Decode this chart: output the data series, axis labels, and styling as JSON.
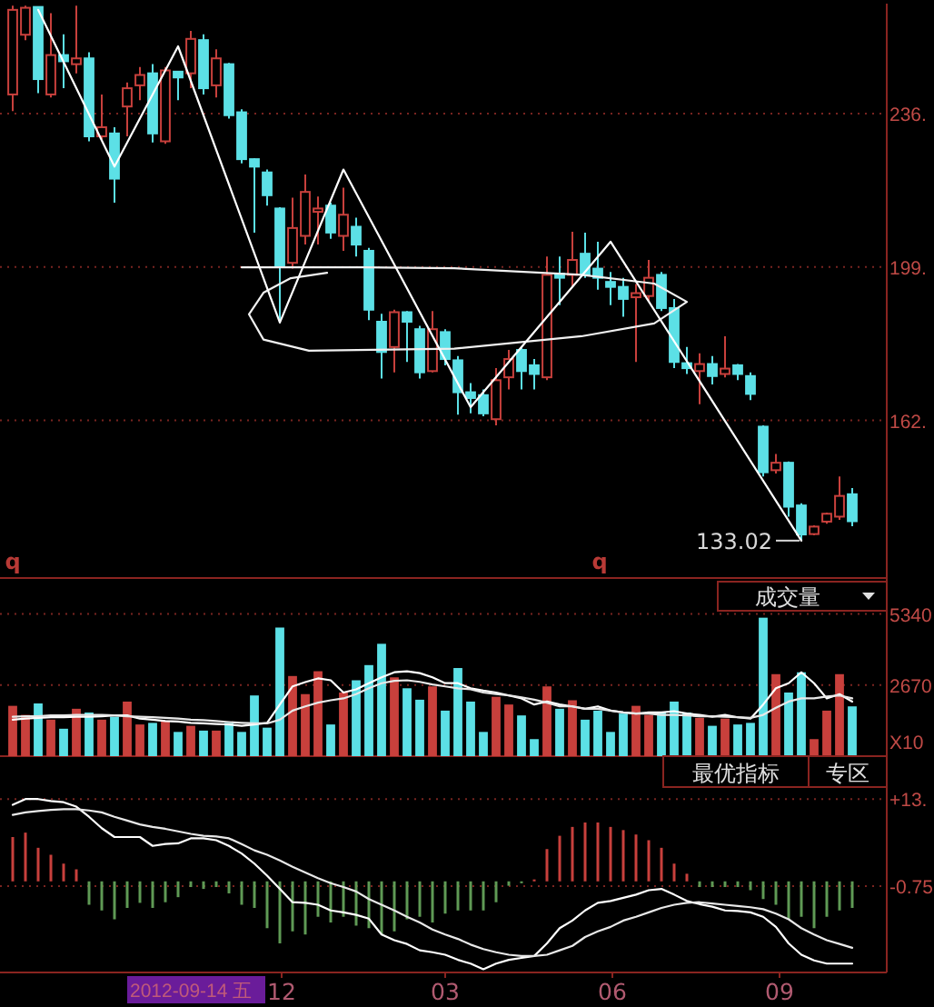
{
  "chart_data": [
    {
      "type": "candlestick",
      "xlim": [
        "2012-06-29",
        "2013-10-30"
      ],
      "ylim": [
        124,
        262.5
      ],
      "yticks": [
        {
          "value": 236,
          "label": "236."
        },
        {
          "value": 199,
          "label": "199."
        },
        {
          "value": 162,
          "label": "162."
        }
      ],
      "grid": "y",
      "tick_labels": "y",
      "x": [
        "2012-07-06",
        "2012-07-13",
        "2012-07-20",
        "2012-07-27",
        "2012-08-03",
        "2012-08-10",
        "2012-08-17",
        "2012-08-24",
        "2012-08-31",
        "2012-09-07",
        "2012-09-14",
        "2012-09-21",
        "2012-09-28",
        "2012-10-05",
        "2012-10-12",
        "2012-10-19",
        "2012-10-26",
        "2012-11-02",
        "2012-11-09",
        "2012-11-16",
        "2012-11-23",
        "2012-11-30",
        "2012-12-07",
        "2012-12-14",
        "2012-12-21",
        "2012-12-28",
        "2013-01-04",
        "2013-01-11",
        "2013-01-18",
        "2013-01-25",
        "2013-02-01",
        "2013-02-08",
        "2013-02-15",
        "2013-02-22",
        "2013-03-01",
        "2013-03-08",
        "2013-03-15",
        "2013-03-22",
        "2013-03-29",
        "2013-04-05",
        "2013-04-12",
        "2013-04-19",
        "2013-04-26",
        "2013-05-03",
        "2013-05-10",
        "2013-05-17",
        "2013-05-24",
        "2013-05-31",
        "2013-06-07",
        "2013-06-14",
        "2013-06-21",
        "2013-06-28",
        "2013-07-05",
        "2013-07-12",
        "2013-07-19",
        "2013-07-26",
        "2013-08-02",
        "2013-08-09",
        "2013-08-16",
        "2013-08-23",
        "2013-08-30",
        "2013-09-06",
        "2013-09-13",
        "2013-09-20",
        "2013-09-27",
        "2013-10-04",
        "2013-10-11"
      ],
      "ohlc": [
        [
          240.6,
          262.0,
          236.6,
          261.0
        ],
        [
          255.0,
          262.0,
          253.7,
          261.5
        ],
        [
          261.7,
          261.7,
          240.9,
          244.3
        ],
        [
          240.6,
          260.2,
          239.9,
          250.1
        ],
        [
          250.1,
          255.1,
          242.1,
          248.6
        ],
        [
          247.9,
          262.0,
          245.7,
          249.3
        ],
        [
          249.3,
          250.8,
          229.3,
          230.5
        ],
        [
          230.5,
          240.6,
          229.8,
          232.7
        ],
        [
          231.2,
          232.7,
          214.5,
          220.3
        ],
        [
          237.7,
          243.5,
          230.5,
          242.1
        ],
        [
          242.8,
          247.2,
          239.2,
          245.3
        ],
        [
          245.7,
          247.9,
          229.0,
          231.2
        ],
        [
          229.3,
          247.2,
          228.7,
          246.4
        ],
        [
          246.1,
          246.3,
          239.2,
          244.7
        ],
        [
          245.7,
          255.9,
          242.1,
          254.0
        ],
        [
          253.7,
          255.1,
          240.6,
          242.1
        ],
        [
          242.8,
          251.5,
          239.9,
          249.3
        ],
        [
          247.9,
          248.2,
          234.8,
          235.6
        ],
        [
          236.3,
          237.0,
          224.0,
          225.0
        ],
        [
          225.0,
          225.2,
          207.3,
          223.2
        ],
        [
          221.8,
          222.5,
          213.8,
          216.3
        ],
        [
          213.1,
          213.4,
          185.5,
          199.3
        ],
        [
          200.0,
          215.7,
          198.6,
          208.4
        ],
        [
          206.5,
          221.3,
          204.4,
          217.1
        ],
        [
          212.3,
          216.0,
          204.4,
          213.1
        ],
        [
          213.8,
          214.5,
          205.8,
          207.3
        ],
        [
          206.5,
          218.1,
          202.9,
          211.6
        ],
        [
          208.7,
          210.9,
          201.5,
          204.4
        ],
        [
          202.9,
          203.6,
          186.2,
          188.7
        ],
        [
          185.8,
          187.7,
          172.1,
          178.5
        ],
        [
          179.7,
          188.7,
          173.6,
          188.1
        ],
        [
          188.1,
          188.4,
          176.1,
          185.8
        ],
        [
          184.0,
          184.8,
          172.1,
          173.6
        ],
        [
          173.9,
          188.4,
          173.6,
          184.0
        ],
        [
          183.3,
          184.0,
          175.3,
          176.8
        ],
        [
          176.5,
          177.5,
          163.4,
          168.8
        ],
        [
          168.8,
          171.0,
          163.7,
          167.4
        ],
        [
          168.1,
          169.5,
          163.0,
          163.7
        ],
        [
          162.3,
          174.6,
          160.8,
          171.7
        ],
        [
          172.4,
          179.0,
          169.5,
          176.8
        ],
        [
          179.0,
          179.7,
          169.5,
          173.9
        ],
        [
          175.3,
          176.8,
          169.5,
          173.2
        ],
        [
          172.4,
          201.5,
          171.7,
          197.1
        ],
        [
          197.4,
          201.5,
          189.8,
          196.4
        ],
        [
          197.1,
          207.5,
          194.2,
          200.7
        ],
        [
          202.2,
          207.3,
          196.4,
          197.1
        ],
        [
          198.6,
          205.1,
          193.5,
          196.4
        ],
        [
          195.4,
          197.8,
          189.8,
          194.2
        ],
        [
          194.2,
          196.4,
          187.0,
          191.3
        ],
        [
          191.7,
          194.9,
          176.1,
          192.7
        ],
        [
          192.0,
          200.7,
          190.6,
          196.4
        ],
        [
          197.1,
          197.8,
          188.4,
          189.1
        ],
        [
          189.1,
          191.3,
          174.6,
          176.1
        ],
        [
          175.8,
          179.7,
          173.2,
          174.6
        ],
        [
          173.9,
          178.2,
          165.9,
          175.6
        ],
        [
          175.6,
          177.5,
          170.7,
          172.7
        ],
        [
          173.2,
          182.3,
          172.4,
          174.5
        ],
        [
          175.3,
          175.6,
          171.7,
          173.2
        ],
        [
          172.7,
          173.6,
          166.9,
          168.4
        ],
        [
          160.5,
          160.8,
          148.5,
          149.5
        ],
        [
          150.0,
          153.9,
          149.2,
          151.8
        ],
        [
          151.8,
          152.1,
          138.8,
          141.2
        ],
        [
          141.5,
          142.0,
          133.02,
          134.5
        ],
        [
          134.6,
          136.7,
          134.3,
          136.4
        ],
        [
          137.6,
          139.8,
          137.1,
          139.5
        ],
        [
          138.8,
          148.5,
          138.0,
          143.8
        ],
        [
          144.2,
          145.7,
          136.5,
          137.7
        ]
      ],
      "colors": [
        "#c8403c",
        "#c8403c",
        "#5ce0e6",
        "#c8403c",
        "#5ce0e6",
        "#c8403c",
        "#5ce0e6",
        "#c8403c",
        "#5ce0e6",
        "#c8403c",
        "#c8403c",
        "#5ce0e6",
        "#c8403c",
        "#5ce0e6",
        "#c8403c",
        "#5ce0e6",
        "#c8403c",
        "#5ce0e6",
        "#5ce0e6",
        "#5ce0e6",
        "#5ce0e6",
        "#5ce0e6",
        "#c8403c",
        "#c8403c",
        "#c8403c",
        "#5ce0e6",
        "#c8403c",
        "#5ce0e6",
        "#5ce0e6",
        "#5ce0e6",
        "#c8403c",
        "#5ce0e6",
        "#5ce0e6",
        "#c8403c",
        "#5ce0e6",
        "#5ce0e6",
        "#5ce0e6",
        "#5ce0e6",
        "#c8403c",
        "#c8403c",
        "#5ce0e6",
        "#5ce0e6",
        "#c8403c",
        "#5ce0e6",
        "#c8403c",
        "#5ce0e6",
        "#5ce0e6",
        "#5ce0e6",
        "#5ce0e6",
        "#c8403c",
        "#c8403c",
        "#5ce0e6",
        "#5ce0e6",
        "#5ce0e6",
        "#c8403c",
        "#5ce0e6",
        "#c8403c",
        "#5ce0e6",
        "#5ce0e6",
        "#5ce0e6",
        "#c8403c",
        "#5ce0e6",
        "#5ce0e6",
        "#c8403c",
        "#c8403c",
        "#c8403c",
        "#5ce0e6"
      ],
      "series": [
        {
          "type": "line",
          "color": "#f0f0f0",
          "x": [
            "2012-11-09",
            "2013-01-15",
            "2013-03-06",
            "2013-05-15",
            "2013-06-24",
            "2013-07-12",
            "2013-06-24",
            "2013-05-15",
            "2013-03-06",
            "2012-12-16",
            "2012-11-21",
            "2012-11-13",
            "2012-11-21",
            "2012-12-06",
            "2012-12-26"
          ],
          "values": [
            198.9,
            198.9,
            198.7,
            197.1,
            195.0,
            190.6,
            185.4,
            182.3,
            179.3,
            178.8,
            181.5,
            187.6,
            192.8,
            196.3,
            197.6
          ]
        },
        {
          "type": "line",
          "color": "#ffffff",
          "x": [
            "2012-07-20",
            "2012-08-31",
            "2012-10-05",
            "2012-11-30",
            "2013-01-04",
            "2013-03-15",
            "2013-05-31",
            "2013-09-13"
          ],
          "values": [
            261.0,
            223.2,
            252.2,
            185.6,
            222.5,
            165.2,
            205.1,
            133.02
          ]
        }
      ],
      "annotations": [
        {
          "text": "133.02",
          "x": "2013-09-13",
          "y": 133.02
        },
        "q",
        "q"
      ]
    },
    {
      "type": "bar",
      "xlim": [
        "2012-06-29",
        "2013-10-30"
      ],
      "ylim": [
        0,
        6690
      ],
      "yticks": [
        5340,
        2670
      ],
      "ylabel": "X10",
      "grid": "y",
      "tick_labels": "y",
      "x": [
        "2012-07-06",
        "2012-07-13",
        "2012-07-20",
        "2012-07-27",
        "2012-08-03",
        "2012-08-10",
        "2012-08-17",
        "2012-08-24",
        "2012-08-31",
        "2012-09-07",
        "2012-09-14",
        "2012-09-21",
        "2012-09-28",
        "2012-10-05",
        "2012-10-12",
        "2012-10-19",
        "2012-10-26",
        "2012-11-02",
        "2012-11-09",
        "2012-11-16",
        "2012-11-23",
        "2012-11-30",
        "2012-12-07",
        "2012-12-14",
        "2012-12-21",
        "2012-12-28",
        "2013-01-04",
        "2013-01-11",
        "2013-01-18",
        "2013-01-25",
        "2013-02-01",
        "2013-02-08",
        "2013-02-15",
        "2013-02-22",
        "2013-03-01",
        "2013-03-08",
        "2013-03-15",
        "2013-03-22",
        "2013-03-29",
        "2013-04-05",
        "2013-04-12",
        "2013-04-19",
        "2013-04-26",
        "2013-05-03",
        "2013-05-10",
        "2013-05-17",
        "2013-05-24",
        "2013-05-31",
        "2013-06-07",
        "2013-06-14",
        "2013-06-21",
        "2013-06-28",
        "2013-07-05",
        "2013-07-12",
        "2013-07-19",
        "2013-07-26",
        "2013-08-02",
        "2013-08-09",
        "2013-08-16",
        "2013-08-23",
        "2013-08-30",
        "2013-09-06",
        "2013-09-13",
        "2013-09-20",
        "2013-09-27",
        "2013-10-04",
        "2013-10-11"
      ],
      "series": [
        {
          "type": "bar",
          "values": [
            1890,
            1550,
            1980,
            1370,
            1030,
            1780,
            1640,
            1370,
            1480,
            2050,
            1190,
            1250,
            1320,
            910,
            1140,
            960,
            960,
            1250,
            910,
            2280,
            1070,
            4830,
            3010,
            2330,
            3190,
            1190,
            2390,
            2850,
            3420,
            4220,
            2960,
            2550,
            2120,
            2620,
            1710,
            3310,
            2050,
            910,
            2230,
            1940,
            1530,
            640,
            2620,
            1780,
            2100,
            1370,
            1710,
            910,
            1600,
            1890,
            1550,
            1640,
            2050,
            1640,
            1440,
            1140,
            1410,
            1190,
            1250,
            5200,
            3080,
            2390,
            3150,
            640,
            1710,
            3080,
            1870
          ],
          "colors": [
            "#c8403c",
            "#c8403c",
            "#5ce0e6",
            "#c8403c",
            "#5ce0e6",
            "#c8403c",
            "#5ce0e6",
            "#c8403c",
            "#5ce0e6",
            "#c8403c",
            "#c8403c",
            "#5ce0e6",
            "#c8403c",
            "#5ce0e6",
            "#c8403c",
            "#5ce0e6",
            "#c8403c",
            "#5ce0e6",
            "#5ce0e6",
            "#5ce0e6",
            "#5ce0e6",
            "#5ce0e6",
            "#c8403c",
            "#c8403c",
            "#c8403c",
            "#5ce0e6",
            "#c8403c",
            "#5ce0e6",
            "#5ce0e6",
            "#5ce0e6",
            "#c8403c",
            "#5ce0e6",
            "#5ce0e6",
            "#c8403c",
            "#5ce0e6",
            "#5ce0e6",
            "#5ce0e6",
            "#5ce0e6",
            "#c8403c",
            "#c8403c",
            "#5ce0e6",
            "#5ce0e6",
            "#c8403c",
            "#5ce0e6",
            "#c8403c",
            "#5ce0e6",
            "#5ce0e6",
            "#5ce0e6",
            "#5ce0e6",
            "#c8403c",
            "#c8403c",
            "#5ce0e6",
            "#5ce0e6",
            "#5ce0e6",
            "#c8403c",
            "#5ce0e6",
            "#c8403c",
            "#5ce0e6",
            "#5ce0e6",
            "#5ce0e6",
            "#c8403c",
            "#5ce0e6",
            "#5ce0e6",
            "#c8403c",
            "#c8403c",
            "#c8403c",
            "#5ce0e6"
          ]
        },
        {
          "type": "line",
          "color": "#ffffff",
          "values": [
            1370,
            1410,
            1440,
            1460,
            1460,
            1480,
            1480,
            1500,
            1530,
            1530,
            1410,
            1370,
            1320,
            1300,
            1250,
            1230,
            1210,
            1190,
            1140,
            1190,
            1250,
            1940,
            2620,
            2780,
            2920,
            2850,
            2390,
            2510,
            2740,
            2960,
            3150,
            3190,
            3120,
            2960,
            2740,
            2740,
            2550,
            2460,
            2390,
            2280,
            2170,
            1940,
            2050,
            1940,
            1870,
            1780,
            1870,
            1710,
            1640,
            1600,
            1640,
            1640,
            1690,
            1600,
            1550,
            1480,
            1550,
            1460,
            1410,
            1940,
            2550,
            2740,
            3150,
            2740,
            2170,
            2330,
            2050
          ]
        },
        {
          "type": "line",
          "color": "#e8e8e8",
          "values": [
            1480,
            1500,
            1500,
            1530,
            1530,
            1550,
            1550,
            1550,
            1530,
            1500,
            1480,
            1460,
            1440,
            1410,
            1370,
            1350,
            1320,
            1280,
            1250,
            1230,
            1230,
            1370,
            1710,
            1870,
            2010,
            2100,
            2170,
            2330,
            2550,
            2740,
            2830,
            2850,
            2790,
            2690,
            2620,
            2550,
            2510,
            2390,
            2330,
            2280,
            2210,
            2120,
            2010,
            1870,
            1870,
            1780,
            1780,
            1710,
            1640,
            1600,
            1600,
            1550,
            1550,
            1530,
            1500,
            1500,
            1480,
            1460,
            1440,
            1550,
            1820,
            2050,
            2170,
            2170,
            2240,
            2280,
            2170
          ]
        }
      ],
      "annotations": [
        "成交量"
      ]
    },
    {
      "type": "bar",
      "xlim": [
        "2012-06-29",
        "2013-10-30"
      ],
      "ylim": [
        -14.4,
        14.9
      ],
      "yticks": [
        {
          "value": 13,
          "label": "+13."
        },
        -0.75
      ],
      "grid": "y",
      "xticks": [
        {
          "value": "2012-12-01",
          "label": "12"
        },
        {
          "value": "2013-03-01",
          "label": "03"
        },
        {
          "value": "2013-06-01",
          "label": "06"
        },
        {
          "value": "2013-09-01",
          "label": "09"
        }
      ],
      "x": [
        "2012-07-06",
        "2012-07-13",
        "2012-07-20",
        "2012-07-27",
        "2012-08-03",
        "2012-08-10",
        "2012-08-17",
        "2012-08-24",
        "2012-08-31",
        "2012-09-07",
        "2012-09-14",
        "2012-09-21",
        "2012-09-28",
        "2012-10-05",
        "2012-10-12",
        "2012-10-19",
        "2012-10-26",
        "2012-11-02",
        "2012-11-09",
        "2012-11-16",
        "2012-11-23",
        "2012-11-30",
        "2012-12-07",
        "2012-12-14",
        "2012-12-21",
        "2012-12-28",
        "2013-01-04",
        "2013-01-11",
        "2013-01-18",
        "2013-01-25",
        "2013-02-01",
        "2013-02-08",
        "2013-02-15",
        "2013-02-22",
        "2013-03-01",
        "2013-03-08",
        "2013-03-15",
        "2013-03-22",
        "2013-03-29",
        "2013-04-05",
        "2013-04-12",
        "2013-04-19",
        "2013-04-26",
        "2013-05-03",
        "2013-05-10",
        "2013-05-17",
        "2013-05-24",
        "2013-05-31",
        "2013-06-07",
        "2013-06-14",
        "2013-06-21",
        "2013-06-28",
        "2013-07-05",
        "2013-07-12",
        "2013-07-19",
        "2013-07-26",
        "2013-08-02",
        "2013-08-09",
        "2013-08-16",
        "2013-08-23",
        "2013-08-30",
        "2013-09-06",
        "2013-09-13",
        "2013-09-20",
        "2013-09-27",
        "2013-10-04",
        "2013-10-11"
      ],
      "series": [
        {
          "type": "bar",
          "color": "#c8403c",
          "values": [
            7.0,
            7.7,
            5.3,
            4.2,
            2.8,
            1.9,
            null,
            null,
            null,
            null,
            null,
            null,
            null,
            null,
            null,
            null,
            null,
            null,
            null,
            null,
            null,
            null,
            null,
            null,
            null,
            null,
            null,
            null,
            null,
            null,
            null,
            null,
            null,
            null,
            null,
            null,
            null,
            null,
            null,
            null,
            null,
            0.3,
            5.1,
            7.2,
            8.6,
            9.3,
            9.3,
            8.6,
            8.1,
            7.4,
            6.5,
            5.3,
            2.8,
            1.2,
            null,
            null,
            null,
            null,
            null,
            null,
            null,
            null,
            null,
            null,
            null,
            null,
            null
          ]
        },
        {
          "type": "bar",
          "color": "#5f9a55",
          "values": [
            null,
            null,
            null,
            null,
            null,
            null,
            -3.7,
            -4.6,
            -6.0,
            -4.2,
            -3.4,
            -4.2,
            -3.3,
            -2.5,
            -0.9,
            -1.2,
            -0.9,
            -1.9,
            -3.7,
            -4.2,
            -7.4,
            -9.8,
            -7.9,
            -8.4,
            -5.6,
            -6.5,
            -5.6,
            -7.0,
            -7.4,
            -8.4,
            -7.9,
            -6.0,
            -5.6,
            -6.5,
            -5.1,
            -4.6,
            -4.6,
            -4.6,
            -3.3,
            -0.7,
            -0.3,
            null,
            null,
            null,
            null,
            null,
            null,
            null,
            null,
            null,
            null,
            null,
            null,
            null,
            -0.9,
            -0.9,
            -0.9,
            -0.9,
            -1.4,
            -2.8,
            -3.7,
            -6.0,
            -5.6,
            -7.4,
            -5.6,
            -4.6,
            -4.2
          ]
        },
        {
          "type": "line",
          "color": "#ffffff",
          "values": [
            12.1,
            13.0,
            13.0,
            12.7,
            12.5,
            11.8,
            10.2,
            8.4,
            7.0,
            7.0,
            7.0,
            5.6,
            5.9,
            6.0,
            6.8,
            6.8,
            6.5,
            5.6,
            4.4,
            2.8,
            0.9,
            -1.2,
            -3.3,
            -3.4,
            -3.7,
            -4.6,
            -4.9,
            -5.3,
            -5.9,
            -8.4,
            -9.3,
            -9.9,
            -10.9,
            -11.2,
            -11.6,
            -12.4,
            -13.0,
            -13.9,
            -13.0,
            -12.4,
            -12.1,
            -11.8,
            -9.8,
            -7.4,
            -6.2,
            -4.6,
            -3.4,
            -3.1,
            -2.6,
            -2.1,
            -1.4,
            -1.2,
            -2.1,
            -3.1,
            -3.6,
            -4.0,
            -4.6,
            -4.7,
            -4.9,
            -5.6,
            -7.2,
            -9.8,
            -11.6,
            -12.5,
            -13.0,
            -13.0,
            -13.0
          ]
        },
        {
          "type": "line",
          "color": "#e8e8e8",
          "values": [
            10.5,
            10.9,
            11.1,
            11.3,
            11.4,
            11.4,
            11.2,
            10.9,
            10.2,
            9.6,
            9.0,
            8.6,
            8.3,
            7.9,
            7.5,
            7.2,
            7.1,
            6.8,
            5.9,
            4.9,
            4.2,
            3.3,
            2.3,
            1.4,
            0.5,
            -0.3,
            -0.9,
            -1.6,
            -2.8,
            -3.7,
            -4.6,
            -5.6,
            -6.5,
            -7.6,
            -8.4,
            -9.1,
            -10.0,
            -10.7,
            -11.2,
            -11.6,
            -11.8,
            -11.8,
            -11.6,
            -10.9,
            -10.2,
            -8.8,
            -7.9,
            -7.2,
            -6.2,
            -5.6,
            -4.9,
            -4.2,
            -3.7,
            -3.4,
            -3.3,
            -3.5,
            -3.7,
            -3.9,
            -4.1,
            -4.4,
            -5.1,
            -6.0,
            -7.4,
            -8.4,
            -9.3,
            -9.9,
            -10.5
          ]
        }
      ],
      "annotations": [
        "最优指标",
        "专区",
        "2012-09-14 五"
      ]
    }
  ]
}
